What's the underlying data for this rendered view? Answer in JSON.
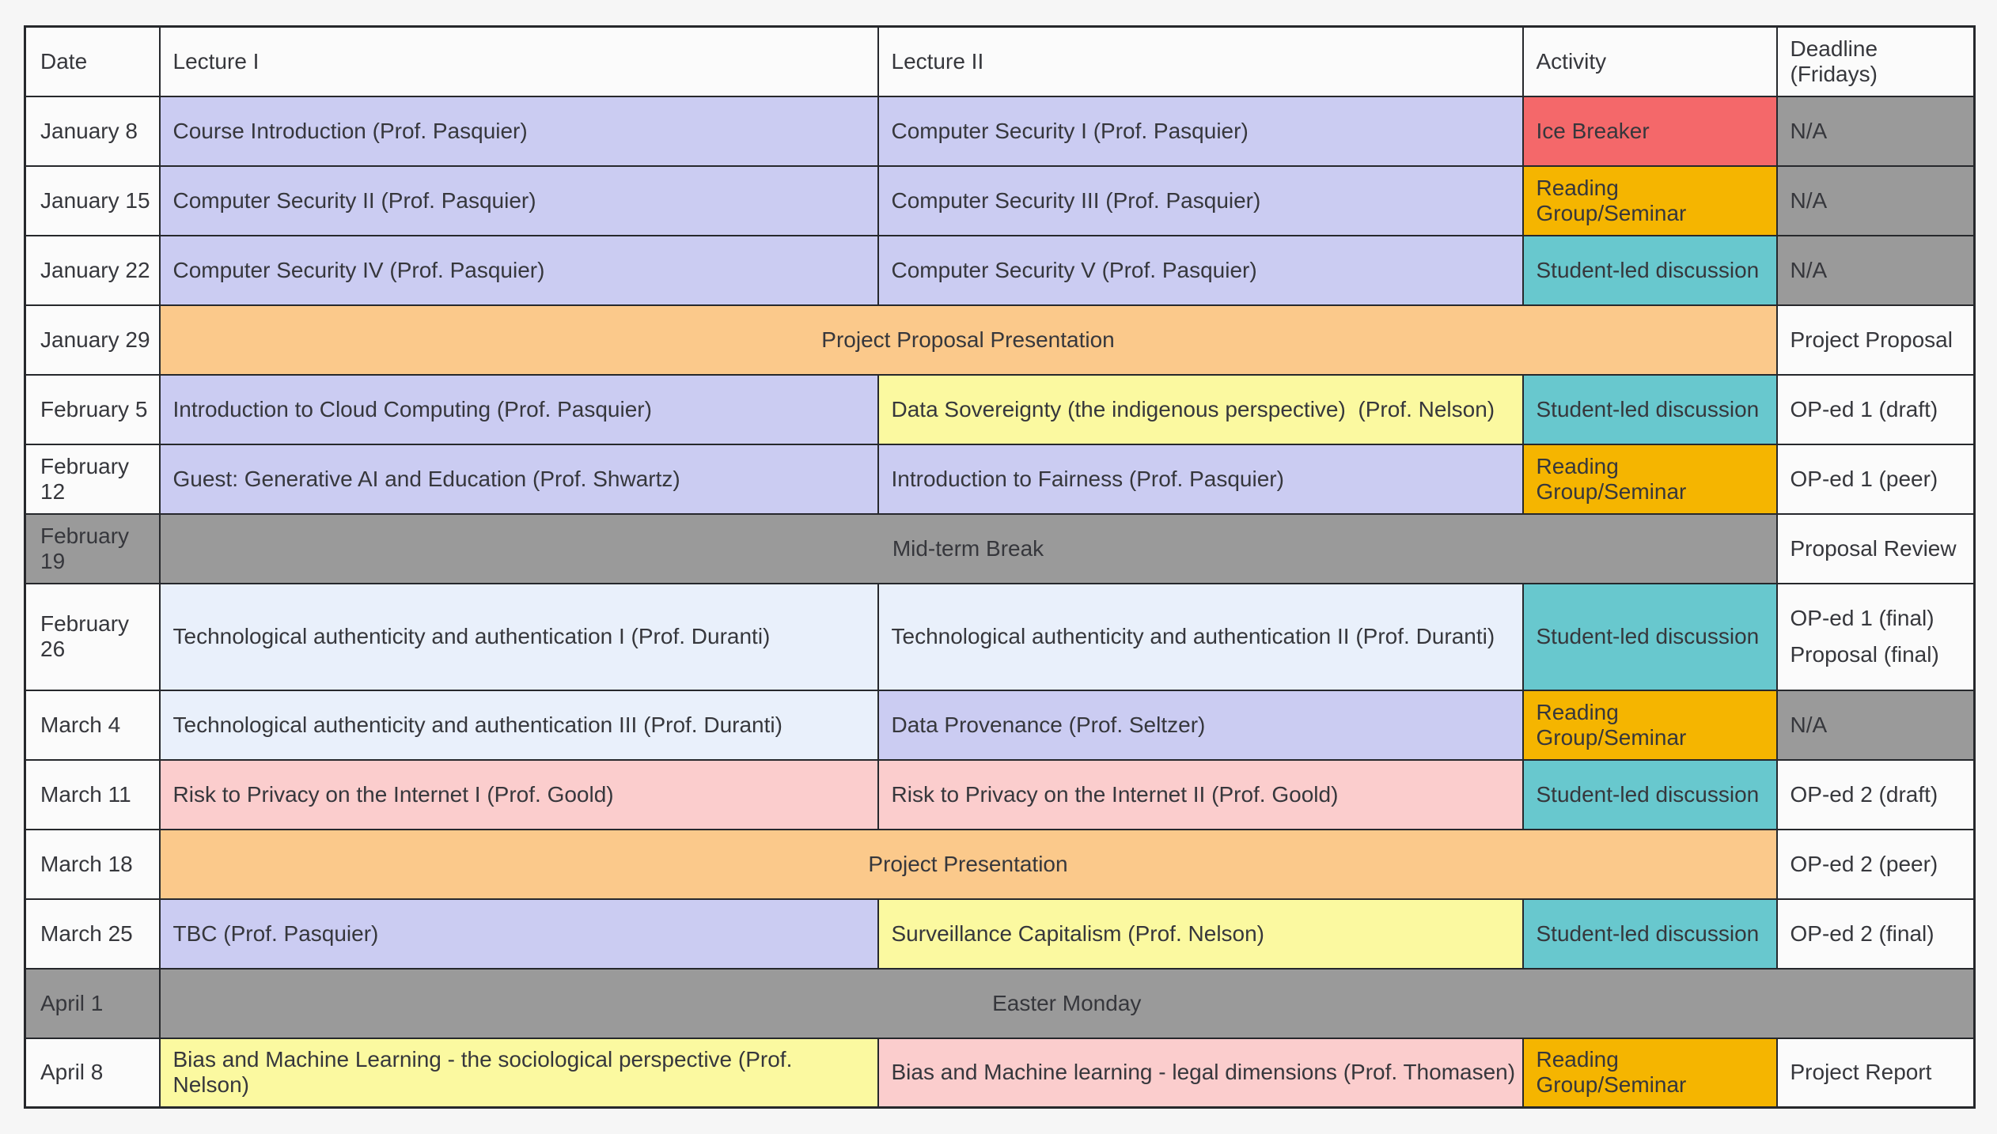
{
  "colors": {
    "white": "#fbfbfb",
    "lavender": "#cbccf2",
    "blue": "#e9f0fb",
    "yellow": "#fbf9a0",
    "pink": "#fbcdcd",
    "red": "#f4686a",
    "amber": "#f5b500",
    "teal": "#68c8ce",
    "orange": "#fbc98b",
    "gray": "#9a9a9a",
    "border": "#26282c",
    "page_background": "#f6f6f6"
  },
  "table": {
    "columns": [
      "Date",
      "Lecture I",
      "Lecture II",
      "Activity",
      "Deadline (Fridays)"
    ],
    "rows": [
      {
        "date": {
          "text": "January 8",
          "bg": "white"
        },
        "cells": [
          {
            "text": "Course Introduction (Prof. Pasquier)",
            "bg": "lavender"
          },
          {
            "text": "Computer Security I (Prof. Pasquier)",
            "bg": "lavender"
          },
          {
            "text": "Ice Breaker",
            "bg": "red"
          },
          {
            "text": "N/A",
            "bg": "gray"
          }
        ]
      },
      {
        "date": {
          "text": "January 15",
          "bg": "white"
        },
        "cells": [
          {
            "text": "Computer Security II (Prof. Pasquier)",
            "bg": "lavender"
          },
          {
            "text": "Computer Security III (Prof. Pasquier)",
            "bg": "lavender"
          },
          {
            "text": "Reading Group/Seminar",
            "bg": "amber"
          },
          {
            "text": "N/A",
            "bg": "gray"
          }
        ]
      },
      {
        "date": {
          "text": "January 22",
          "bg": "white"
        },
        "cells": [
          {
            "text": "Computer Security IV (Prof. Pasquier)",
            "bg": "lavender"
          },
          {
            "text": "Computer Security V (Prof. Pasquier)",
            "bg": "lavender"
          },
          {
            "text": "Student-led discussion",
            "bg": "teal"
          },
          {
            "text": "N/A",
            "bg": "gray"
          }
        ]
      },
      {
        "date": {
          "text": "January 29",
          "bg": "white"
        },
        "cells": [
          {
            "text": "Project Proposal Presentation",
            "bg": "orange",
            "colspan": 3,
            "align": "center"
          },
          {
            "text": "Project Proposal",
            "bg": "white"
          }
        ]
      },
      {
        "date": {
          "text": "February 5",
          "bg": "white"
        },
        "cells": [
          {
            "text": "Introduction to Cloud Computing (Prof. Pasquier)",
            "bg": "lavender"
          },
          {
            "text": "Data Sovereignty (the indigenous perspective)  (Prof. Nelson)",
            "bg": "yellow"
          },
          {
            "text": "Student-led discussion",
            "bg": "teal"
          },
          {
            "text": "OP-ed 1 (draft)",
            "bg": "white"
          }
        ]
      },
      {
        "date": {
          "text": "February 12",
          "bg": "white"
        },
        "cells": [
          {
            "text": "Guest: Generative AI and Education (Prof. Shwartz)",
            "bg": "lavender"
          },
          {
            "text": "Introduction to Fairness (Prof. Pasquier)",
            "bg": "lavender"
          },
          {
            "text": "Reading Group/Seminar",
            "bg": "amber"
          },
          {
            "text": "OP-ed 1 (peer)",
            "bg": "white"
          }
        ]
      },
      {
        "date": {
          "text": "February 19",
          "bg": "gray"
        },
        "cells": [
          {
            "text": "Mid-term Break",
            "bg": "gray",
            "colspan": 3,
            "align": "center"
          },
          {
            "text": "Proposal Review",
            "bg": "white"
          }
        ]
      },
      {
        "date": {
          "text": "February 26",
          "bg": "white"
        },
        "cells": [
          {
            "text": "Technological authenticity and authentication I (Prof. Duranti)",
            "bg": "blue"
          },
          {
            "text": "Technological authenticity and authentication II (Prof. Duranti)",
            "bg": "blue"
          },
          {
            "text": "Student-led discussion",
            "bg": "teal"
          },
          {
            "lines": [
              "OP-ed 1 (final)",
              "Proposal (final)"
            ],
            "bg": "white"
          }
        ]
      },
      {
        "date": {
          "text": "March 4",
          "bg": "white"
        },
        "cells": [
          {
            "text": "Technological authenticity and authentication III (Prof. Duranti)",
            "bg": "blue"
          },
          {
            "text": "Data Provenance (Prof. Seltzer)",
            "bg": "lavender"
          },
          {
            "text": "Reading Group/Seminar",
            "bg": "amber"
          },
          {
            "text": "N/A",
            "bg": "gray"
          }
        ]
      },
      {
        "date": {
          "text": "March 11",
          "bg": "white"
        },
        "cells": [
          {
            "text": "Risk to Privacy on the Internet I (Prof. Goold)",
            "bg": "pink"
          },
          {
            "text": "Risk to Privacy on the Internet II (Prof. Goold)",
            "bg": "pink"
          },
          {
            "text": "Student-led discussion",
            "bg": "teal"
          },
          {
            "text": "OP-ed 2 (draft)",
            "bg": "white"
          }
        ]
      },
      {
        "date": {
          "text": "March 18",
          "bg": "white"
        },
        "cells": [
          {
            "text": "Project Presentation",
            "bg": "orange",
            "colspan": 3,
            "align": "center"
          },
          {
            "text": "OP-ed 2 (peer)",
            "bg": "white"
          }
        ]
      },
      {
        "date": {
          "text": "March 25",
          "bg": "white"
        },
        "cells": [
          {
            "text": "TBC (Prof. Pasquier)",
            "bg": "lavender"
          },
          {
            "text": "Surveillance Capitalism (Prof. Nelson)",
            "bg": "yellow"
          },
          {
            "text": "Student-led discussion",
            "bg": "teal"
          },
          {
            "text": "OP-ed 2 (final)",
            "bg": "white"
          }
        ]
      },
      {
        "date": {
          "text": "April 1",
          "bg": "gray"
        },
        "cells": [
          {
            "text": "Easter Monday",
            "bg": "gray",
            "colspan": 4,
            "align": "center"
          }
        ]
      },
      {
        "date": {
          "text": "April 8",
          "bg": "white"
        },
        "cells": [
          {
            "text": "Bias and Machine Learning - the sociological perspective (Prof. Nelson)",
            "bg": "yellow"
          },
          {
            "text": "Bias and Machine learning - legal dimensions (Prof. Thomasen)",
            "bg": "pink"
          },
          {
            "text": "Reading Group/Seminar",
            "bg": "amber"
          },
          {
            "text": "Project Report",
            "bg": "white"
          }
        ]
      }
    ]
  }
}
